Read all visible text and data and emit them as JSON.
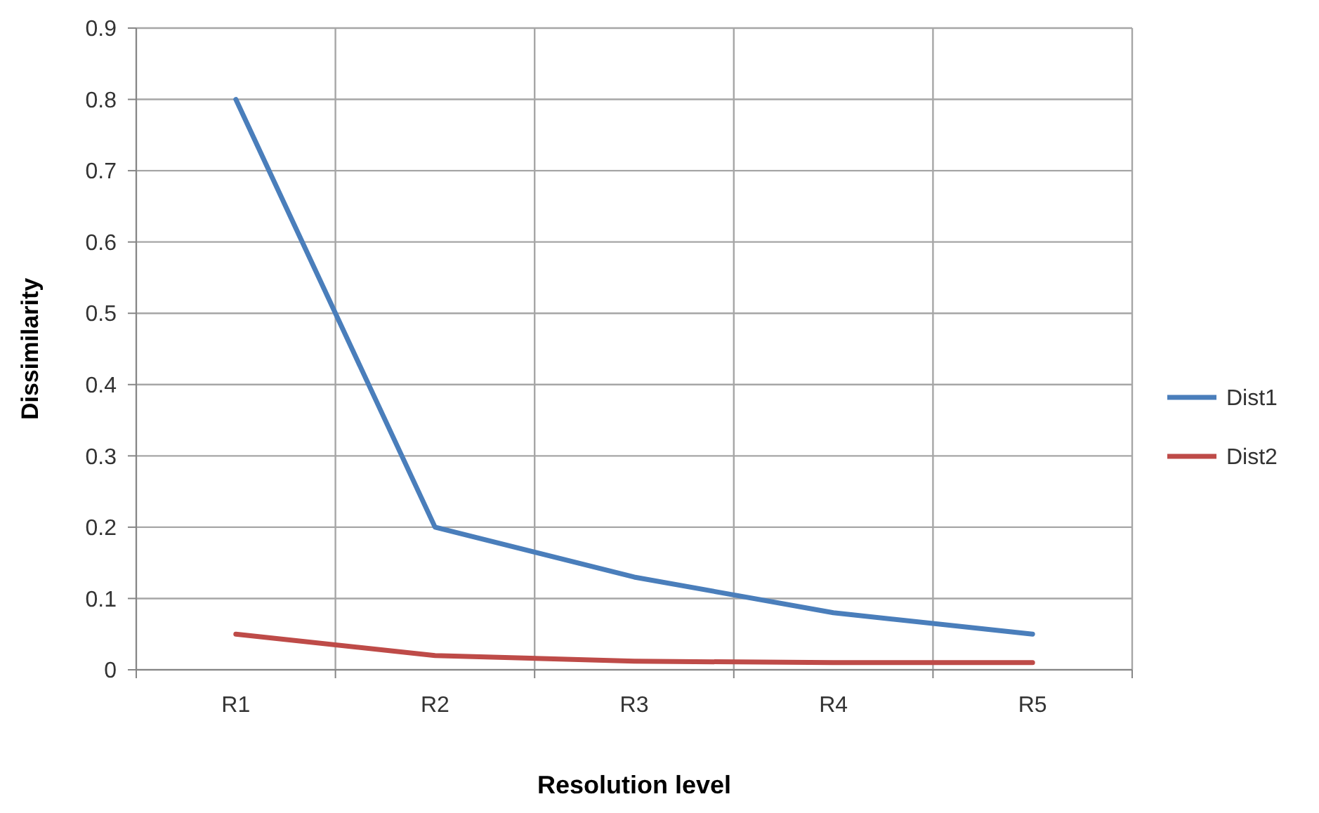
{
  "chart_data": {
    "type": "line",
    "xlabel": "Resolution level",
    "ylabel": "Dissimilarity",
    "categories": [
      "R1",
      "R2",
      "R3",
      "R4",
      "R5"
    ],
    "series": [
      {
        "name": "Dist1",
        "color": "#4a7ebb",
        "values": [
          0.8,
          0.2,
          0.13,
          0.08,
          0.05
        ]
      },
      {
        "name": "Dist2",
        "color": "#be4b48",
        "values": [
          0.05,
          0.02,
          0.012,
          0.01,
          0.01
        ]
      }
    ],
    "ylim": [
      0,
      0.9
    ],
    "yticks": [
      0,
      0.1,
      0.2,
      0.3,
      0.4,
      0.5,
      0.6,
      0.7,
      0.8,
      0.9
    ],
    "grid": true,
    "legend": "right",
    "marker": "none",
    "line_style": "solid"
  }
}
